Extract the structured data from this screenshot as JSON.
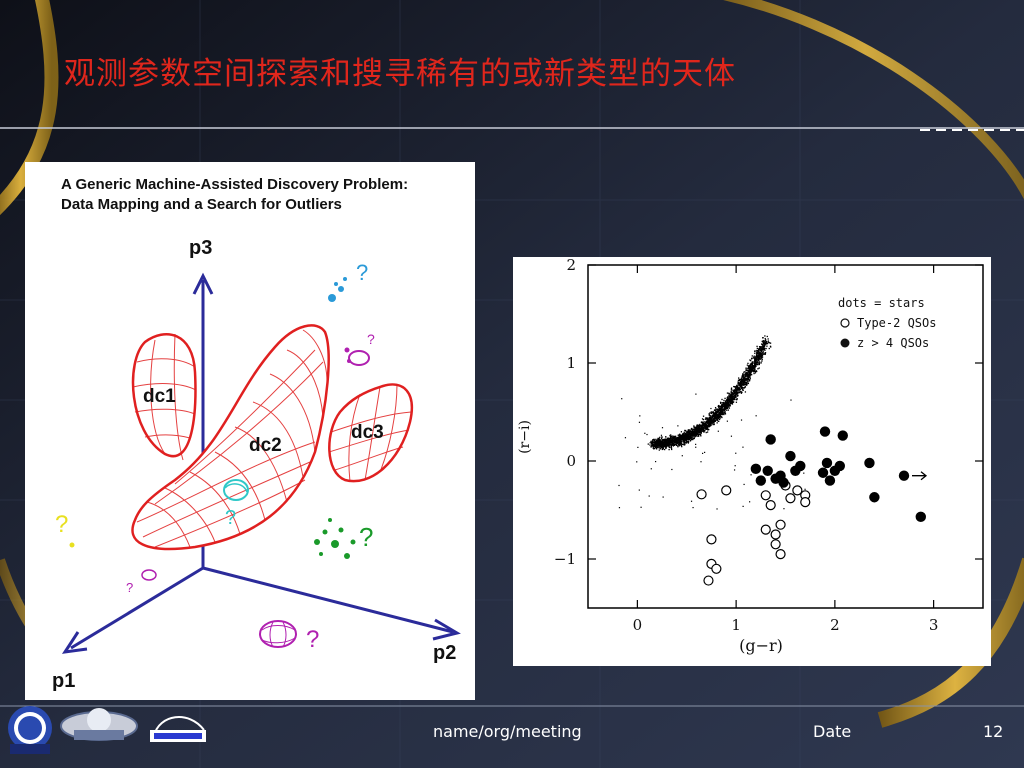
{
  "slide": {
    "title": "观测参数空间探索和搜寻稀有的或新类型的天体",
    "footer_center": "name/org/meeting",
    "footer_date": "Date",
    "page_number": "12"
  },
  "logos": [
    "China-VO",
    "IVOA",
    "NAOC"
  ],
  "diagram": {
    "title_line1": "A Generic Machine-Assisted Discovery Problem:",
    "title_line2": "Data Mapping and a Search for Outliers",
    "axis_p1": "p1",
    "axis_p2": "p2",
    "axis_p3": "p3",
    "cluster_1": "dc1",
    "cluster_2": "dc2",
    "cluster_3": "dc3",
    "question_mark": "?"
  },
  "chart_data": {
    "type": "scatter",
    "xlabel": "(g−r)",
    "ylabel": "(r−i)",
    "xlim": [
      -0.5,
      3.5
    ],
    "ylim": [
      -1.5,
      2.0
    ],
    "x_ticks": [
      "0",
      "1",
      "2",
      "3"
    ],
    "y_ticks": [
      "2",
      "1",
      "0",
      "−1"
    ],
    "x_tick_values": [
      0,
      1,
      2,
      3
    ],
    "y_tick_values": [
      2,
      1,
      0,
      -1
    ],
    "legend_position": "top-right",
    "legend": [
      "dots = stars",
      "Type-2 QSOs",
      "z > 4 QSOs"
    ],
    "series": [
      {
        "name": "Type-2 QSOs",
        "marker": "open-circle",
        "points": [
          [
            0.65,
            -0.34
          ],
          [
            0.9,
            -0.3
          ],
          [
            0.75,
            -0.8
          ],
          [
            0.75,
            -1.05
          ],
          [
            0.8,
            -1.1
          ],
          [
            0.72,
            -1.22
          ],
          [
            1.3,
            -0.35
          ],
          [
            1.35,
            -0.45
          ],
          [
            1.3,
            -0.7
          ],
          [
            1.4,
            -0.75
          ],
          [
            1.45,
            -0.65
          ],
          [
            1.4,
            -0.85
          ],
          [
            1.45,
            -0.95
          ],
          [
            1.55,
            -0.38
          ],
          [
            1.62,
            -0.3
          ],
          [
            1.7,
            -0.35
          ],
          [
            1.7,
            -0.42
          ],
          [
            1.5,
            -0.25
          ]
        ]
      },
      {
        "name": "z > 4 QSOs",
        "marker": "filled-circle",
        "points": [
          [
            1.2,
            -0.08
          ],
          [
            1.35,
            0.22
          ],
          [
            1.25,
            -0.2
          ],
          [
            1.32,
            -0.1
          ],
          [
            1.4,
            -0.18
          ],
          [
            1.45,
            -0.15
          ],
          [
            1.48,
            -0.22
          ],
          [
            1.55,
            0.05
          ],
          [
            1.6,
            -0.1
          ],
          [
            1.65,
            -0.05
          ],
          [
            1.9,
            0.3
          ],
          [
            1.88,
            -0.12
          ],
          [
            1.95,
            -0.2
          ],
          [
            1.92,
            -0.02
          ],
          [
            2.0,
            -0.1
          ],
          [
            2.05,
            -0.05
          ],
          [
            2.08,
            0.26
          ],
          [
            2.35,
            -0.02
          ],
          [
            2.4,
            -0.37
          ],
          [
            2.7,
            -0.15
          ],
          [
            2.87,
            -0.57
          ]
        ]
      }
    ],
    "arrow_point": [
      2.7,
      -0.15
    ]
  },
  "colors": {
    "title": "#e0261c",
    "diagram_axis": "#2b2b9a",
    "cluster": "#e02020",
    "outlier_blue": "#2a9ad8",
    "outlier_magenta": "#b020b0",
    "outlier_green": "#1a9a2a",
    "outlier_yellow": "#e8e020",
    "outlier_cyan": "#30c8c8"
  }
}
